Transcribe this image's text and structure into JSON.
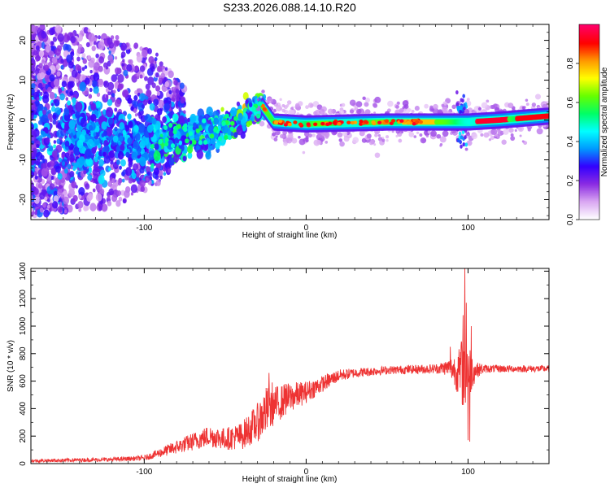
{
  "title": "S233.2026.088.14.10.R20",
  "chart_data": [
    {
      "type": "heatmap",
      "name": "spectrogram",
      "xlabel": "Height of straight line (km)",
      "ylabel": "Frequency (Hz)",
      "xlim": [
        -170,
        150
      ],
      "ylim": [
        -25,
        24
      ],
      "xticks": [
        -100,
        0,
        100
      ],
      "yticks": [
        -20,
        -10,
        0,
        10,
        20
      ],
      "colorbar": {
        "label": "Normalized spectral amplitude",
        "range": [
          0,
          1
        ],
        "ticks": [
          "0.0",
          "0.2",
          "0.4",
          "0.6",
          "0.8"
        ],
        "colors": [
          "#ffffff",
          "#d9a6f2",
          "#8a2be2",
          "#3300ff",
          "#0099ff",
          "#00ffff",
          "#00ff66",
          "#66ff00",
          "#ffff00",
          "#ff9900",
          "#ff0000",
          "#ff0066"
        ]
      },
      "ridge": {
        "x": [
          -170,
          -100,
          -60,
          -40,
          -30,
          -28,
          -20,
          0,
          50,
          90,
          100,
          120,
          150
        ],
        "freq": [
          -3,
          -5,
          -3,
          0,
          3,
          4,
          -0.5,
          -1,
          -0.5,
          -0.5,
          -0.5,
          0,
          1
        ]
      }
    },
    {
      "type": "line",
      "name": "snr",
      "xlabel": "Height of straight line (km)",
      "ylabel": "SNR (10 * v/v)",
      "xlim": [
        -170,
        150
      ],
      "ylim": [
        0,
        1420
      ],
      "xticks": [
        -100,
        0,
        100
      ],
      "yticks": [
        0,
        200,
        400,
        600,
        800,
        1000,
        1200,
        1400
      ],
      "line_color": "#ee3333",
      "envelope": {
        "x": [
          -170,
          -120,
          -100,
          -80,
          -60,
          -50,
          -40,
          -30,
          -25,
          -20,
          -10,
          0,
          10,
          20,
          30,
          50,
          80,
          88,
          92,
          95,
          98,
          100,
          102,
          105,
          110,
          130,
          150
        ],
        "mean": [
          20,
          30,
          40,
          120,
          200,
          180,
          200,
          300,
          380,
          420,
          480,
          520,
          580,
          640,
          660,
          680,
          690,
          700,
          680,
          650,
          700,
          680,
          670,
          680,
          690,
          690,
          690
        ],
        "amp": [
          12,
          15,
          18,
          50,
          80,
          80,
          100,
          140,
          180,
          140,
          110,
          80,
          60,
          45,
          35,
          30,
          35,
          60,
          120,
          200,
          350,
          250,
          150,
          60,
          30,
          25,
          25
        ]
      },
      "spikes": [
        {
          "x": -23,
          "y": 660
        },
        {
          "x": -21,
          "y": 590
        },
        {
          "x": -13,
          "y": 580
        },
        {
          "x": 89,
          "y": 850
        },
        {
          "x": 96,
          "y": 880
        },
        {
          "x": 97,
          "y": 1080
        },
        {
          "x": 98,
          "y": 1430
        },
        {
          "x": 99,
          "y": 1170
        },
        {
          "x": 100,
          "y": 170
        },
        {
          "x": 101,
          "y": 160
        },
        {
          "x": 102,
          "y": 1000
        }
      ]
    }
  ]
}
